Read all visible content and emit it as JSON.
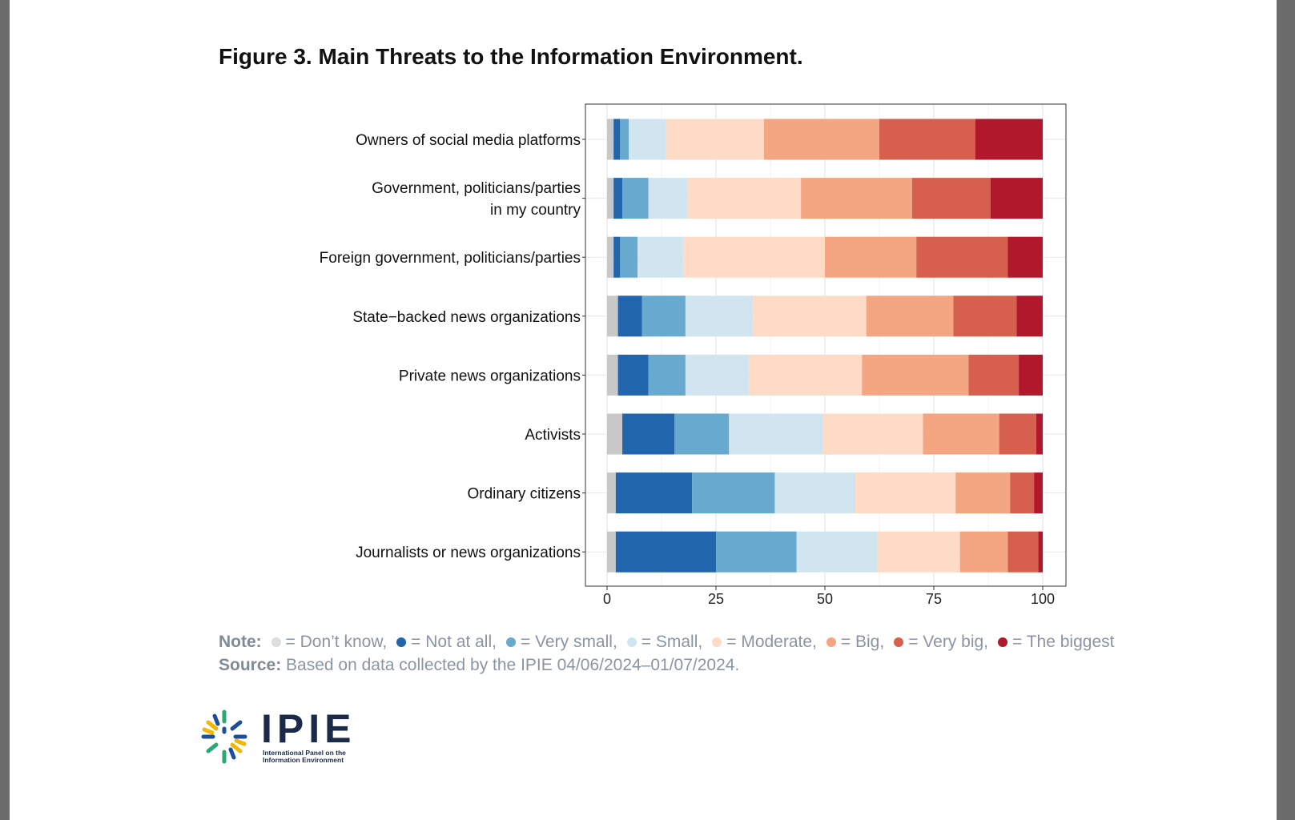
{
  "figure": {
    "title": "Figure 3. Main Threats to the Information Environment."
  },
  "chart_data": {
    "type": "bar",
    "orientation": "horizontal",
    "stacked": true,
    "title": "",
    "xlabel": "",
    "ylabel": "",
    "xlim": [
      0,
      100
    ],
    "x_ticks": [
      "0",
      "25",
      "50",
      "75",
      "100"
    ],
    "grid": true,
    "legend": "below",
    "categories": [
      "Owners of social media platforms",
      "Government, politicians/parties in my country",
      "Foreign government, politicians/parties",
      "State−backed news organizations",
      "Private news organizations",
      "Activists",
      "Ordinary citizens",
      "Journalists or news organizations"
    ],
    "category_lines": [
      [
        "Owners of social media platforms"
      ],
      [
        "Government, politicians/parties",
        "in my country"
      ],
      [
        "Foreign government, politicians/parties"
      ],
      [
        "State−backed news organizations"
      ],
      [
        "Private news organizations"
      ],
      [
        "Activists"
      ],
      [
        "Ordinary citizens"
      ],
      [
        "Journalists or news organizations"
      ]
    ],
    "series": [
      {
        "name": "Don’t know",
        "color": "#c8c8c8",
        "values": [
          1.5,
          1.5,
          1.5,
          2.5,
          2.5,
          3.5,
          2.0,
          2.0
        ]
      },
      {
        "name": "Not at all",
        "color": "#2166ac",
        "values": [
          1.5,
          2.0,
          1.5,
          5.5,
          7.0,
          12.0,
          17.5,
          23.0
        ]
      },
      {
        "name": "Very small",
        "color": "#67a9cf",
        "values": [
          2.0,
          6.0,
          4.0,
          10.0,
          8.5,
          12.5,
          19.0,
          18.5
        ]
      },
      {
        "name": "Small",
        "color": "#d1e5f0",
        "values": [
          8.5,
          9.0,
          10.5,
          15.5,
          14.5,
          21.5,
          18.5,
          18.5
        ]
      },
      {
        "name": "Moderate",
        "color": "#fddbc7",
        "values": [
          22.5,
          26.0,
          32.5,
          26.0,
          26.0,
          23.0,
          23.0,
          19.0
        ]
      },
      {
        "name": "Big",
        "color": "#f4a582",
        "values": [
          26.5,
          25.5,
          21.0,
          20.0,
          24.5,
          17.5,
          12.5,
          11.0
        ]
      },
      {
        "name": "Very big",
        "color": "#d6604d",
        "values": [
          22.0,
          18.0,
          21.0,
          14.5,
          11.5,
          8.5,
          5.5,
          7.0
        ]
      },
      {
        "name": "The biggest",
        "color": "#b2182b",
        "values": [
          15.5,
          12.0,
          8.0,
          6.0,
          5.5,
          1.5,
          2.0,
          1.0
        ]
      }
    ]
  },
  "note": {
    "label": "Note:",
    "items": [
      {
        "text": "= Don’t know,",
        "color": "#dddddd"
      },
      {
        "text": "= Not at all,",
        "color": "#2166ac"
      },
      {
        "text": "= Very small,",
        "color": "#67a9cf"
      },
      {
        "text": "= Small,",
        "color": "#d1e5f0"
      },
      {
        "text": "= Moderate,",
        "color": "#fddbc7"
      },
      {
        "text": "= Big,",
        "color": "#f4a582"
      },
      {
        "text": "= Very big,",
        "color": "#d6604d"
      },
      {
        "text": "= The biggest",
        "color": "#b2182b"
      }
    ]
  },
  "source": {
    "label": "Source:",
    "text": "Based on data collected by the IPIE 04/06/2024–01/07/2024."
  },
  "logo": {
    "name": "IPIE",
    "subtitle": "International Panel on the Information Environment",
    "icon": "ipie-burst-logo"
  }
}
